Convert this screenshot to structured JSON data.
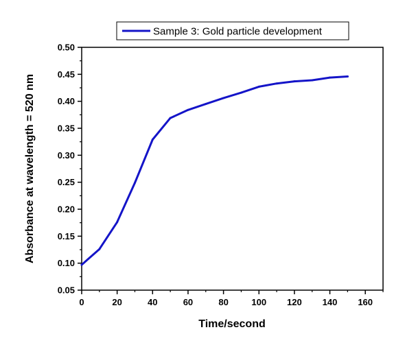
{
  "chart_data": {
    "type": "line",
    "xlabel": "Time/second",
    "ylabel": "Absorbance at wavelength = 520 nm",
    "xlim": [
      0,
      170
    ],
    "ylim": [
      0.05,
      0.5
    ],
    "x_ticks": [
      0,
      20,
      40,
      60,
      80,
      100,
      120,
      140,
      160
    ],
    "y_ticks": [
      0.05,
      0.1,
      0.15,
      0.2,
      0.25,
      0.3,
      0.35,
      0.4,
      0.45,
      0.5
    ],
    "y_tick_labels": [
      "0.05",
      "0.10",
      "0.15",
      "0.20",
      "0.25",
      "0.30",
      "0.35",
      "0.40",
      "0.45",
      "0.50"
    ],
    "grid": false,
    "legend_position": "top-center",
    "series": [
      {
        "name": "Sample 3: Gold particle development",
        "color": "#1414c8",
        "x": [
          0,
          10,
          20,
          30,
          40,
          50,
          60,
          70,
          80,
          90,
          100,
          110,
          120,
          130,
          140,
          150
        ],
        "y": [
          0.097,
          0.126,
          0.176,
          0.249,
          0.329,
          0.369,
          0.384,
          0.395,
          0.406,
          0.416,
          0.427,
          0.433,
          0.437,
          0.439,
          0.444,
          0.446
        ]
      }
    ]
  }
}
